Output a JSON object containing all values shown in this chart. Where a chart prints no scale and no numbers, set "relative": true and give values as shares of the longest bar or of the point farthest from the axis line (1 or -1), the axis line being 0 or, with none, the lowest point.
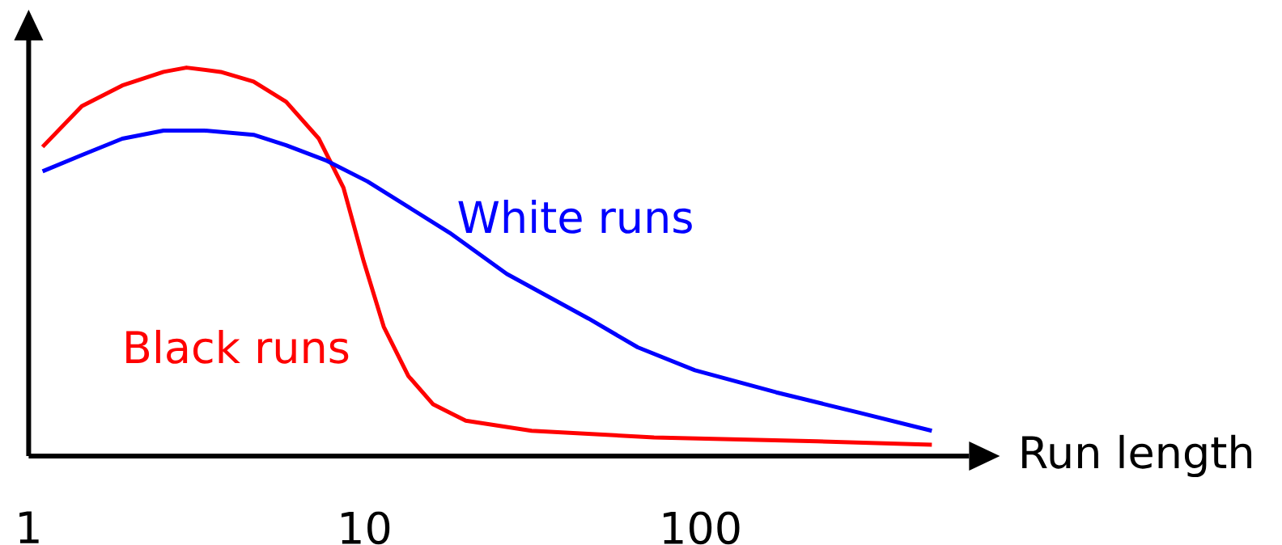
{
  "chart_data": {
    "type": "line",
    "relative": true,
    "log": "x",
    "xlabel": "Run length",
    "xlim": [
      1,
      630
    ],
    "xticks": [
      1,
      10,
      100
    ],
    "grid": false,
    "legend": false,
    "marker": "none",
    "line_style": "solid",
    "series": [
      {
        "name": "Black runs",
        "color": "#ff0000",
        "x": [
          1.1,
          1.44,
          1.9,
          2.52,
          2.95,
          3.73,
          4.67,
          5.84,
          7.31,
          8.65,
          9.94,
          11.4,
          13.5,
          16.0,
          20.0,
          31.4,
          72.7,
          223,
          488
        ],
        "values": [
          0.796,
          0.901,
          0.954,
          0.989,
          1.0,
          0.989,
          0.964,
          0.912,
          0.817,
          0.691,
          0.501,
          0.333,
          0.206,
          0.133,
          0.091,
          0.065,
          0.048,
          0.038,
          0.029
        ]
      },
      {
        "name": "White runs",
        "color": "#0000ff",
        "x": [
          1.1,
          1.44,
          1.9,
          2.52,
          3.33,
          4.67,
          5.84,
          7.73,
          10.2,
          17.9,
          26.5,
          46.4,
          65.0,
          96.2,
          168,
          295,
          488
        ],
        "values": [
          0.733,
          0.775,
          0.817,
          0.838,
          0.838,
          0.827,
          0.8,
          0.76,
          0.707,
          0.575,
          0.469,
          0.354,
          0.28,
          0.221,
          0.164,
          0.112,
          0.065
        ]
      }
    ]
  }
}
